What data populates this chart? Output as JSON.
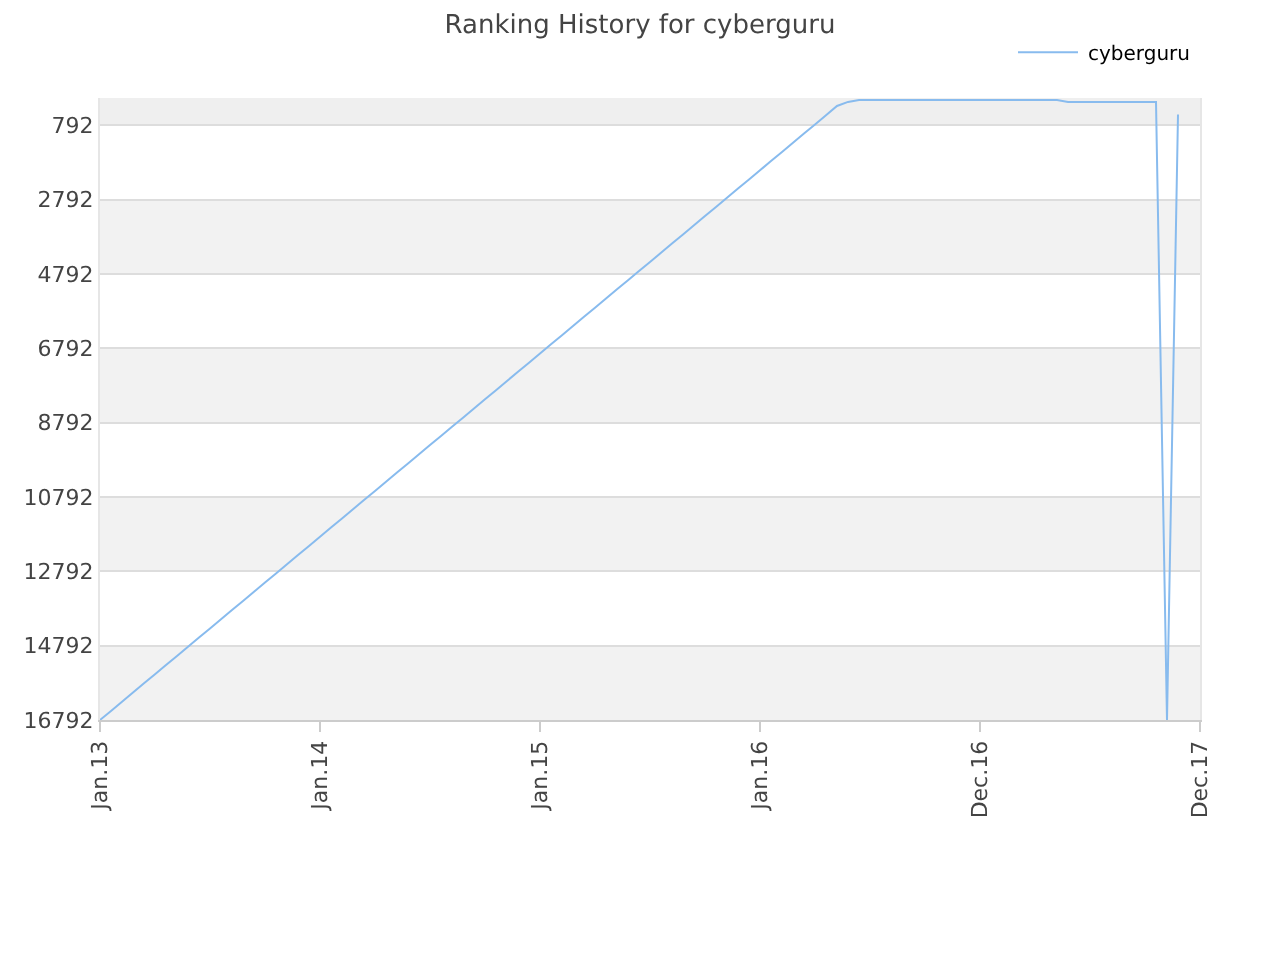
{
  "chart_data": {
    "type": "line",
    "title": "Ranking History for cyberguru",
    "categories": [
      "Jan.13",
      null,
      null,
      null,
      null,
      null,
      null,
      null,
      null,
      null,
      null,
      null,
      null,
      null,
      null,
      null,
      null,
      null,
      null,
      null,
      "Jan.14",
      null,
      null,
      null,
      null,
      null,
      null,
      null,
      null,
      null,
      null,
      null,
      null,
      null,
      null,
      null,
      null,
      null,
      null,
      null,
      "Jan.15",
      null,
      null,
      null,
      null,
      null,
      null,
      null,
      null,
      null,
      null,
      null,
      null,
      null,
      null,
      null,
      null,
      null,
      null,
      null,
      "Jan.16",
      null,
      null,
      null,
      null,
      null,
      null,
      null,
      null,
      null,
      null,
      null,
      null,
      null,
      null,
      null,
      null,
      null,
      null,
      null,
      "Dec.16",
      null,
      null,
      null,
      null,
      null,
      null,
      null,
      null,
      null,
      null,
      null,
      null,
      null,
      null,
      null,
      null,
      null,
      null,
      null,
      "Dec.17"
    ],
    "series": [
      {
        "name": "cyberguru",
        "color": "#88bbee",
        "values": [
          16790,
          16550,
          16300,
          16050,
          15800,
          15560,
          15310,
          15070,
          14820,
          14570,
          14330,
          14080,
          13830,
          13590,
          13340,
          13090,
          12850,
          12600,
          12350,
          12110,
          11860,
          11610,
          11370,
          11120,
          10870,
          10630,
          10380,
          10130,
          9890,
          9640,
          9390,
          9150,
          8900,
          8660,
          8410,
          8160,
          7920,
          7670,
          7420,
          7180,
          6930,
          6680,
          6440,
          6190,
          5940,
          5700,
          5450,
          5200,
          4960,
          4710,
          4470,
          4220,
          3970,
          3730,
          3480,
          3230,
          2990,
          2740,
          2490,
          2250,
          2000,
          1750,
          1510,
          1260,
          1010,
          770,
          520,
          270,
          160,
          110,
          110,
          110,
          110,
          110,
          110,
          110,
          110,
          110,
          110,
          110,
          110,
          110,
          110,
          110,
          110,
          110,
          110,
          110,
          160,
          160,
          160,
          160,
          160,
          160,
          160,
          160,
          160,
          16790,
          500,
          null,
          null
        ]
      }
    ],
    "ylim": [
      16792,
      55
    ],
    "yticks": [
      792,
      2792,
      4792,
      6792,
      8792,
      10792,
      12792,
      14792,
      16792
    ],
    "bands": [
      {
        "axis": "y",
        "from": 55,
        "to": 792,
        "color": "#efefef"
      },
      {
        "axis": "y",
        "from": 2792,
        "to": 4792,
        "color": "#f2f2f2"
      },
      {
        "axis": "y",
        "from": 6792,
        "to": 8792,
        "color": "#f2f2f2"
      },
      {
        "axis": "y",
        "from": 10792,
        "to": 12792,
        "color": "#f2f2f2"
      },
      {
        "axis": "y",
        "from": 14792,
        "to": 16792,
        "color": "#f2f2f2"
      }
    ],
    "grid": "y",
    "legend": "top right",
    "marker": "none",
    "line_style": "solid"
  }
}
